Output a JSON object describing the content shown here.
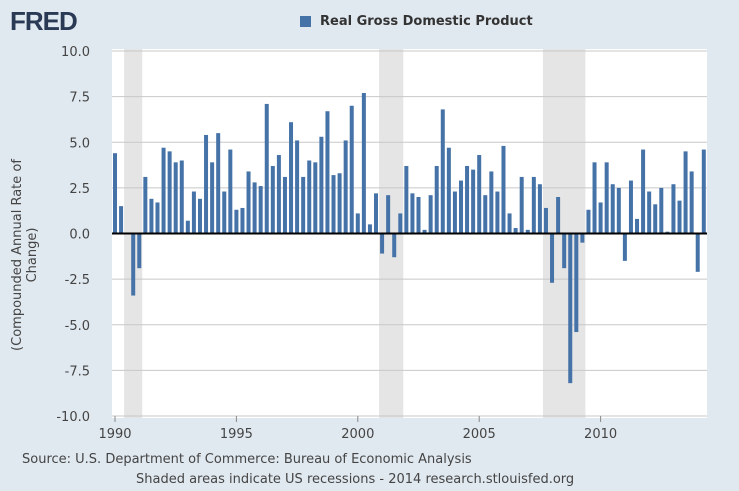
{
  "logo": "FRED",
  "source": "Source: U.S. Department of Commerce: Bureau of Economic Analysis",
  "note": "Shaded areas indicate US recessions - 2014 research.stlouisfed.org",
  "colors": {
    "bar": "#4572a7",
    "recession": "#e5e5e5",
    "background": "#e1e9f0"
  },
  "chart_data": {
    "type": "bar",
    "title": "",
    "legend": [
      "Real Gross Domestic Product"
    ],
    "legend_position": "top",
    "ylabel": "(Compounded Annual Rate of Change)",
    "xlabel": "",
    "ylim": [
      -10,
      10
    ],
    "yticks": [
      "10.0",
      "7.5",
      "5.0",
      "2.5",
      "0.0",
      "-2.5",
      "-5.0",
      "-7.5",
      "-10.0"
    ],
    "xticks": [
      "1990",
      "1995",
      "2000",
      "2005",
      "2010"
    ],
    "grid": true,
    "x_start": "1990 Q1",
    "frequency": "quarterly",
    "series": [
      {
        "name": "Real Gross Domestic Product",
        "values": [
          4.4,
          1.5,
          0.0,
          -3.4,
          -1.9,
          3.1,
          1.9,
          1.7,
          4.7,
          4.5,
          3.9,
          4.0,
          0.7,
          2.3,
          1.9,
          5.4,
          3.9,
          5.5,
          2.3,
          4.6,
          1.3,
          1.4,
          3.4,
          2.8,
          2.6,
          7.1,
          3.7,
          4.3,
          3.1,
          6.1,
          5.1,
          3.1,
          4.0,
          3.9,
          5.3,
          6.7,
          3.2,
          3.3,
          5.1,
          7.0,
          1.1,
          7.7,
          0.5,
          2.2,
          -1.1,
          2.1,
          -1.3,
          1.1,
          3.7,
          2.2,
          2.0,
          0.2,
          2.1,
          3.7,
          6.8,
          4.7,
          2.3,
          2.9,
          3.7,
          3.5,
          4.3,
          2.1,
          3.4,
          2.3,
          4.8,
          1.1,
          0.3,
          3.1,
          0.2,
          3.1,
          2.7,
          1.4,
          -2.7,
          2.0,
          -1.9,
          -8.2,
          -5.4,
          -0.5,
          1.3,
          3.9,
          1.7,
          3.9,
          2.7,
          2.5,
          -1.5,
          2.9,
          0.8,
          4.6,
          2.3,
          1.6,
          2.5,
          0.1,
          2.7,
          1.8,
          4.5,
          3.4,
          -2.1,
          4.6
        ]
      }
    ],
    "recessions": [
      [
        "1990 Q3",
        "1991 Q1"
      ],
      [
        "2001 Q1",
        "2001 Q4"
      ],
      [
        "2007 Q4",
        "2009 Q2"
      ]
    ]
  }
}
